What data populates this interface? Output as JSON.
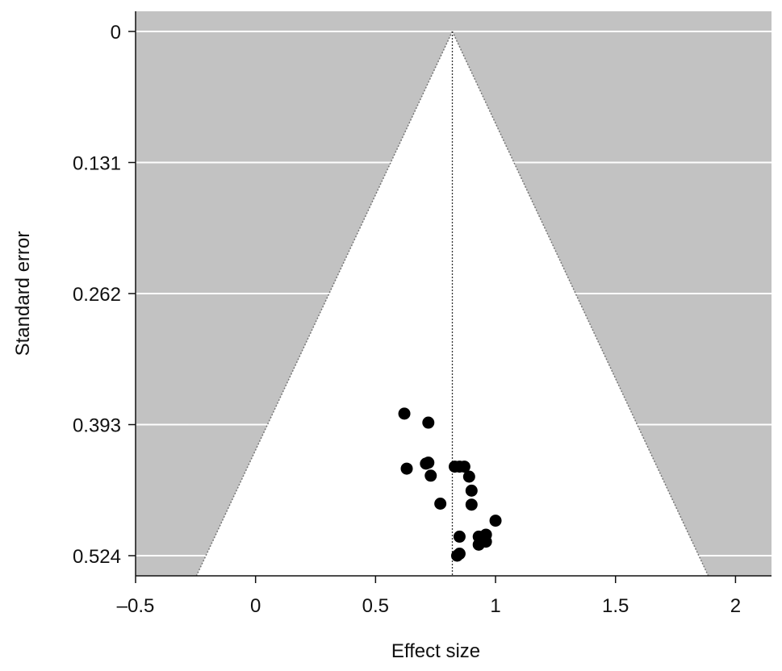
{
  "chart_data": {
    "type": "scatter",
    "subtype": "funnel-plot",
    "xlabel": "Effect size",
    "ylabel": "Standard error",
    "xlim": [
      -0.5,
      2.15
    ],
    "ylim": [
      0,
      0.545
    ],
    "y_reversed": true,
    "x_ticks": [
      {
        "value": -0.5,
        "label": "–0.5"
      },
      {
        "value": 0,
        "label": "0"
      },
      {
        "value": 0.5,
        "label": "0.5"
      },
      {
        "value": 1,
        "label": "1"
      },
      {
        "value": 1.5,
        "label": "1.5"
      },
      {
        "value": 2,
        "label": "2"
      }
    ],
    "y_ticks": [
      {
        "value": 0,
        "label": "0"
      },
      {
        "value": 0.131,
        "label": "0.131"
      },
      {
        "value": 0.262,
        "label": "0.262"
      },
      {
        "value": 0.393,
        "label": "0.393"
      },
      {
        "value": 0.524,
        "label": "0.524"
      }
    ],
    "summary_effect": 0.82,
    "funnel_multiplier": 1.96,
    "grid": true,
    "colors": {
      "background": "#c2c2c2",
      "funnel": "#ffffff",
      "points": "#000000",
      "gridline": "#ffffff",
      "axis": "#111111"
    },
    "points": [
      {
        "x": 0.62,
        "y": 0.382
      },
      {
        "x": 0.72,
        "y": 0.391
      },
      {
        "x": 0.71,
        "y": 0.432
      },
      {
        "x": 0.72,
        "y": 0.431
      },
      {
        "x": 0.63,
        "y": 0.437
      },
      {
        "x": 0.73,
        "y": 0.444
      },
      {
        "x": 0.83,
        "y": 0.435
      },
      {
        "x": 0.85,
        "y": 0.435
      },
      {
        "x": 0.87,
        "y": 0.435
      },
      {
        "x": 0.89,
        "y": 0.445
      },
      {
        "x": 0.9,
        "y": 0.459
      },
      {
        "x": 0.77,
        "y": 0.472
      },
      {
        "x": 0.9,
        "y": 0.473
      },
      {
        "x": 1.0,
        "y": 0.489
      },
      {
        "x": 0.85,
        "y": 0.505
      },
      {
        "x": 0.93,
        "y": 0.505
      },
      {
        "x": 0.96,
        "y": 0.503
      },
      {
        "x": 0.93,
        "y": 0.513
      },
      {
        "x": 0.96,
        "y": 0.51
      },
      {
        "x": 0.84,
        "y": 0.524
      },
      {
        "x": 0.85,
        "y": 0.522
      }
    ]
  }
}
